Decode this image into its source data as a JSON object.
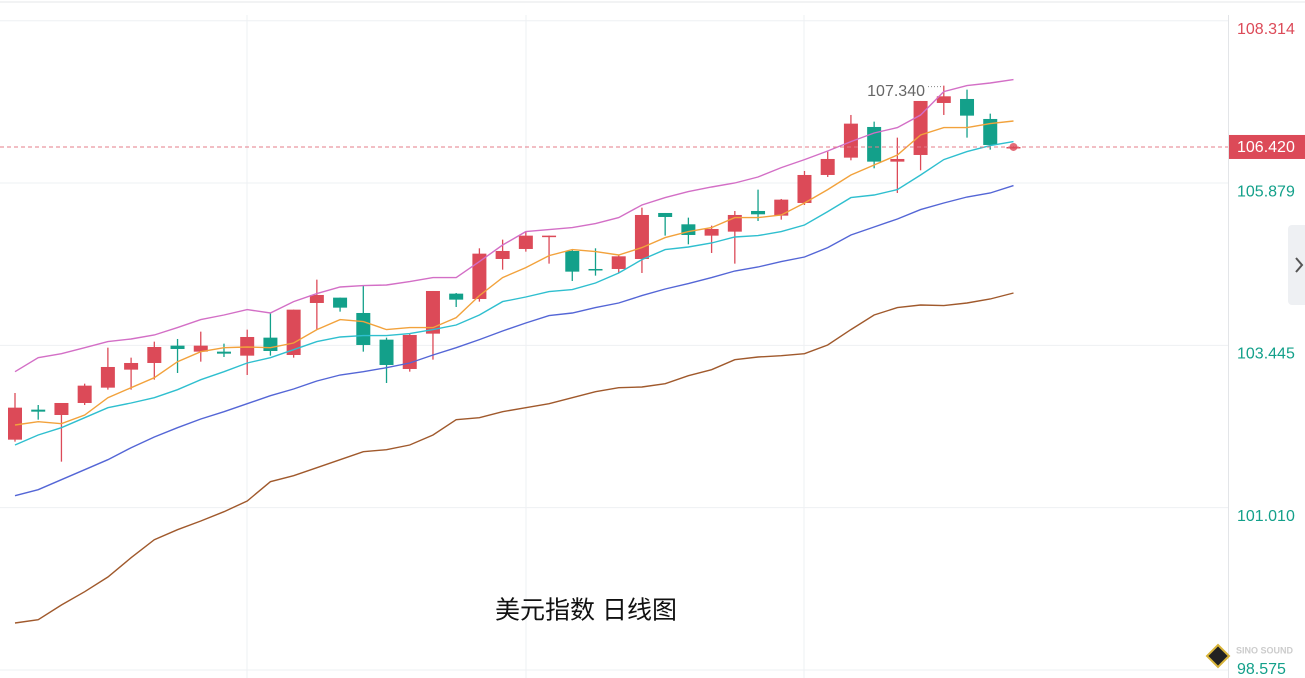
{
  "chart_data": {
    "type": "candlestick",
    "title": "美元指数 日线图",
    "watermark": "SINO SOUND",
    "up_color": "#dc4a58",
    "down_color": "#13a08a",
    "ylim": [
      98.575,
      108.314
    ],
    "yticks": [
      108.314,
      105.879,
      103.445,
      {
        "value": 101.01,
        "label": "101.010"
      },
      98.575
    ],
    "grid": true,
    "last_price": {
      "value": 106.42,
      "label": "106.420"
    },
    "max_label": {
      "value": 107.34,
      "label": "107.340"
    },
    "candles": {
      "open": [
        102.03,
        102.48,
        102.4,
        102.58,
        102.81,
        103.08,
        103.18,
        103.44,
        103.35,
        103.35,
        103.29,
        103.56,
        103.3,
        104.08,
        104.16,
        103.93,
        103.53,
        103.09,
        103.62,
        104.22,
        104.14,
        104.74,
        104.89,
        105.07,
        104.86,
        104.59,
        104.59,
        104.74,
        105.43,
        105.26,
        105.09,
        105.15,
        105.46,
        105.39,
        105.58,
        106.0,
        106.26,
        106.72,
        106.2,
        106.3,
        107.08,
        107.14,
        106.84,
        106.41
      ],
      "high": [
        102.73,
        102.55,
        102.58,
        102.87,
        103.41,
        103.26,
        103.5,
        103.54,
        103.65,
        103.47,
        103.68,
        103.93,
        103.98,
        104.43,
        104.16,
        104.34,
        103.56,
        103.62,
        104.26,
        104.23,
        104.9,
        105.03,
        105.15,
        105.09,
        104.88,
        104.9,
        104.8,
        105.51,
        105.43,
        105.36,
        105.24,
        105.46,
        105.78,
        105.64,
        106.06,
        106.35,
        106.9,
        106.8,
        106.56,
        107.11,
        107.34,
        107.28,
        106.92,
        106.43
      ],
      "low": [
        102.0,
        102.33,
        101.7,
        102.55,
        102.78,
        102.78,
        102.93,
        103.03,
        103.2,
        103.27,
        103.0,
        103.29,
        103.26,
        103.68,
        103.95,
        103.35,
        102.88,
        103.05,
        103.23,
        104.02,
        104.1,
        104.58,
        104.85,
        104.67,
        104.41,
        104.49,
        104.53,
        104.53,
        105.09,
        104.96,
        104.83,
        104.67,
        105.31,
        105.33,
        105.55,
        105.97,
        106.22,
        106.1,
        105.73,
        106.07,
        106.9,
        106.56,
        106.38,
        106.4
      ],
      "close": [
        102.51,
        102.45,
        102.58,
        102.84,
        103.12,
        103.18,
        103.42,
        103.39,
        103.44,
        103.32,
        103.57,
        103.36,
        103.98,
        104.2,
        104.01,
        103.45,
        103.15,
        103.6,
        104.26,
        104.13,
        104.82,
        104.86,
        105.09,
        105.09,
        104.55,
        104.58,
        104.78,
        105.4,
        105.37,
        105.1,
        105.19,
        105.4,
        105.41,
        105.63,
        106.0,
        106.24,
        106.77,
        106.2,
        106.24,
        107.11,
        107.18,
        106.89,
        106.45,
        106.42
      ]
    },
    "series": [
      {
        "color": "#d36fc6",
        "values": [
          103.05,
          103.26,
          103.32,
          103.41,
          103.5,
          103.54,
          103.6,
          103.71,
          103.83,
          103.9,
          103.98,
          103.93,
          104.1,
          104.22,
          104.32,
          104.34,
          104.35,
          104.4,
          104.46,
          104.46,
          104.7,
          104.95,
          105.15,
          105.18,
          105.21,
          105.27,
          105.36,
          105.55,
          105.66,
          105.75,
          105.82,
          105.88,
          105.97,
          106.11,
          106.23,
          106.36,
          106.5,
          106.63,
          106.71,
          106.9,
          107.25,
          107.34,
          107.38,
          107.43
        ]
      },
      {
        "color": "#f2a23c",
        "values": [
          102.25,
          102.3,
          102.27,
          102.4,
          102.66,
          102.81,
          102.96,
          103.2,
          103.35,
          103.41,
          103.42,
          103.41,
          103.48,
          103.68,
          103.83,
          103.8,
          103.68,
          103.71,
          103.71,
          103.86,
          104.19,
          104.46,
          104.61,
          104.79,
          104.88,
          104.85,
          104.8,
          104.91,
          105.06,
          105.15,
          105.21,
          105.36,
          105.36,
          105.4,
          105.58,
          105.78,
          106.0,
          106.15,
          106.3,
          106.6,
          106.71,
          106.71,
          106.77,
          106.81
        ]
      },
      {
        "color": "#2fbfcf",
        "values": [
          101.95,
          102.1,
          102.21,
          102.36,
          102.51,
          102.58,
          102.66,
          102.78,
          102.93,
          103.05,
          103.18,
          103.26,
          103.38,
          103.5,
          103.57,
          103.59,
          103.59,
          103.62,
          103.68,
          103.75,
          103.9,
          104.1,
          104.17,
          104.25,
          104.28,
          104.38,
          104.53,
          104.73,
          104.88,
          104.92,
          104.98,
          105.07,
          105.09,
          105.15,
          105.25,
          105.45,
          105.66,
          105.7,
          105.78,
          106.0,
          106.23,
          106.35,
          106.44,
          106.5
        ]
      },
      {
        "color": "#5466d6",
        "values": [
          101.19,
          101.28,
          101.43,
          101.58,
          101.73,
          101.91,
          102.07,
          102.21,
          102.34,
          102.45,
          102.57,
          102.69,
          102.79,
          102.91,
          103.0,
          103.05,
          103.11,
          103.18,
          103.3,
          103.41,
          103.53,
          103.66,
          103.78,
          103.89,
          103.93,
          104.01,
          104.08,
          104.19,
          104.29,
          104.37,
          104.46,
          104.56,
          104.62,
          104.7,
          104.77,
          104.91,
          105.1,
          105.22,
          105.34,
          105.48,
          105.58,
          105.67,
          105.73,
          105.84
        ]
      },
      {
        "color": "#a0592c",
        "values": [
          99.28,
          99.33,
          99.55,
          99.75,
          99.97,
          100.26,
          100.53,
          100.68,
          100.81,
          100.95,
          101.11,
          101.4,
          101.49,
          101.61,
          101.73,
          101.85,
          101.88,
          101.95,
          102.1,
          102.33,
          102.36,
          102.45,
          102.51,
          102.57,
          102.66,
          102.75,
          102.81,
          102.82,
          102.87,
          102.99,
          103.08,
          103.23,
          103.27,
          103.29,
          103.32,
          103.45,
          103.68,
          103.9,
          104.01,
          104.05,
          104.04,
          104.08,
          104.14,
          104.23
        ]
      }
    ]
  }
}
